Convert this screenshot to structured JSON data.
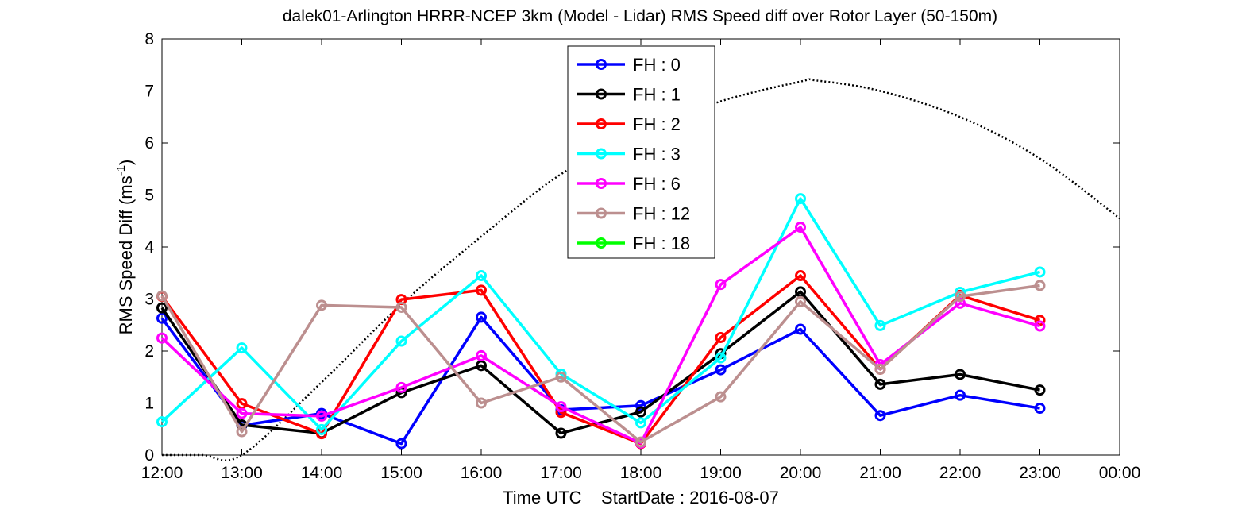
{
  "chart_data": {
    "type": "line",
    "title": "dalek01-Arlington HRRR-NCEP 3km (Model - Lidar) RMS Speed diff over Rotor Layer (50-150m)",
    "xlabel": "Time UTC    StartDate : 2016-08-07",
    "ylabel_main": "RMS Speed Diff (ms",
    "ylabel_sup": "-1",
    "ylabel_close": ")",
    "categories": [
      "12:00",
      "13:00",
      "14:00",
      "15:00",
      "16:00",
      "17:00",
      "18:00",
      "19:00",
      "20:00",
      "21:00",
      "22:00",
      "23:00",
      "00:00"
    ],
    "yticks": [
      "0",
      "1",
      "2",
      "3",
      "4",
      "5",
      "6",
      "7",
      "8"
    ],
    "ylim": [
      0,
      8
    ],
    "legend_position": "top-center",
    "series": [
      {
        "name": "FH : 0",
        "color": "#0000ff",
        "values": [
          2.63,
          0.57,
          0.8,
          0.22,
          2.65,
          0.87,
          0.95,
          1.64,
          2.42,
          0.76,
          1.15,
          0.9,
          null
        ]
      },
      {
        "name": "FH : 1",
        "color": "#000000",
        "values": [
          2.83,
          0.58,
          0.42,
          1.2,
          1.72,
          0.42,
          0.83,
          1.95,
          3.14,
          1.36,
          1.55,
          1.25,
          null
        ]
      },
      {
        "name": "FH : 2",
        "color": "#ff0000",
        "values": [
          3.05,
          0.99,
          0.41,
          2.99,
          3.17,
          0.82,
          0.22,
          2.26,
          3.45,
          1.65,
          3.07,
          2.59,
          null
        ]
      },
      {
        "name": "FH : 3",
        "color": "#00ffff",
        "values": [
          0.64,
          2.06,
          0.49,
          2.19,
          3.45,
          1.56,
          0.62,
          1.87,
          4.93,
          2.49,
          3.13,
          3.52,
          null
        ]
      },
      {
        "name": "FH : 6",
        "color": "#ff00ff",
        "values": [
          2.25,
          0.8,
          0.75,
          1.3,
          1.91,
          0.93,
          0.23,
          3.28,
          4.38,
          1.74,
          2.92,
          2.48,
          null
        ]
      },
      {
        "name": "FH : 12",
        "color": "#bc8f8f",
        "values": [
          3.06,
          0.45,
          2.88,
          2.84,
          1.0,
          1.5,
          0.25,
          1.12,
          2.95,
          1.65,
          3.05,
          3.26,
          null
        ]
      },
      {
        "name": "FH : 18",
        "color": "#00ff00",
        "values": [
          null,
          null,
          null,
          null,
          null,
          null,
          null,
          null,
          null,
          null,
          null,
          null,
          null
        ]
      }
    ],
    "dotted_curve": {
      "color": "#000000",
      "x": [
        0,
        0.5,
        1,
        2,
        3,
        4,
        5,
        6,
        7,
        8,
        8.2,
        9,
        10,
        11,
        12
      ],
      "y": [
        0,
        0,
        0,
        1.4,
        2.9,
        4.2,
        5.4,
        6.2,
        6.8,
        7.18,
        7.2,
        7.0,
        6.5,
        5.7,
        4.55
      ]
    }
  }
}
